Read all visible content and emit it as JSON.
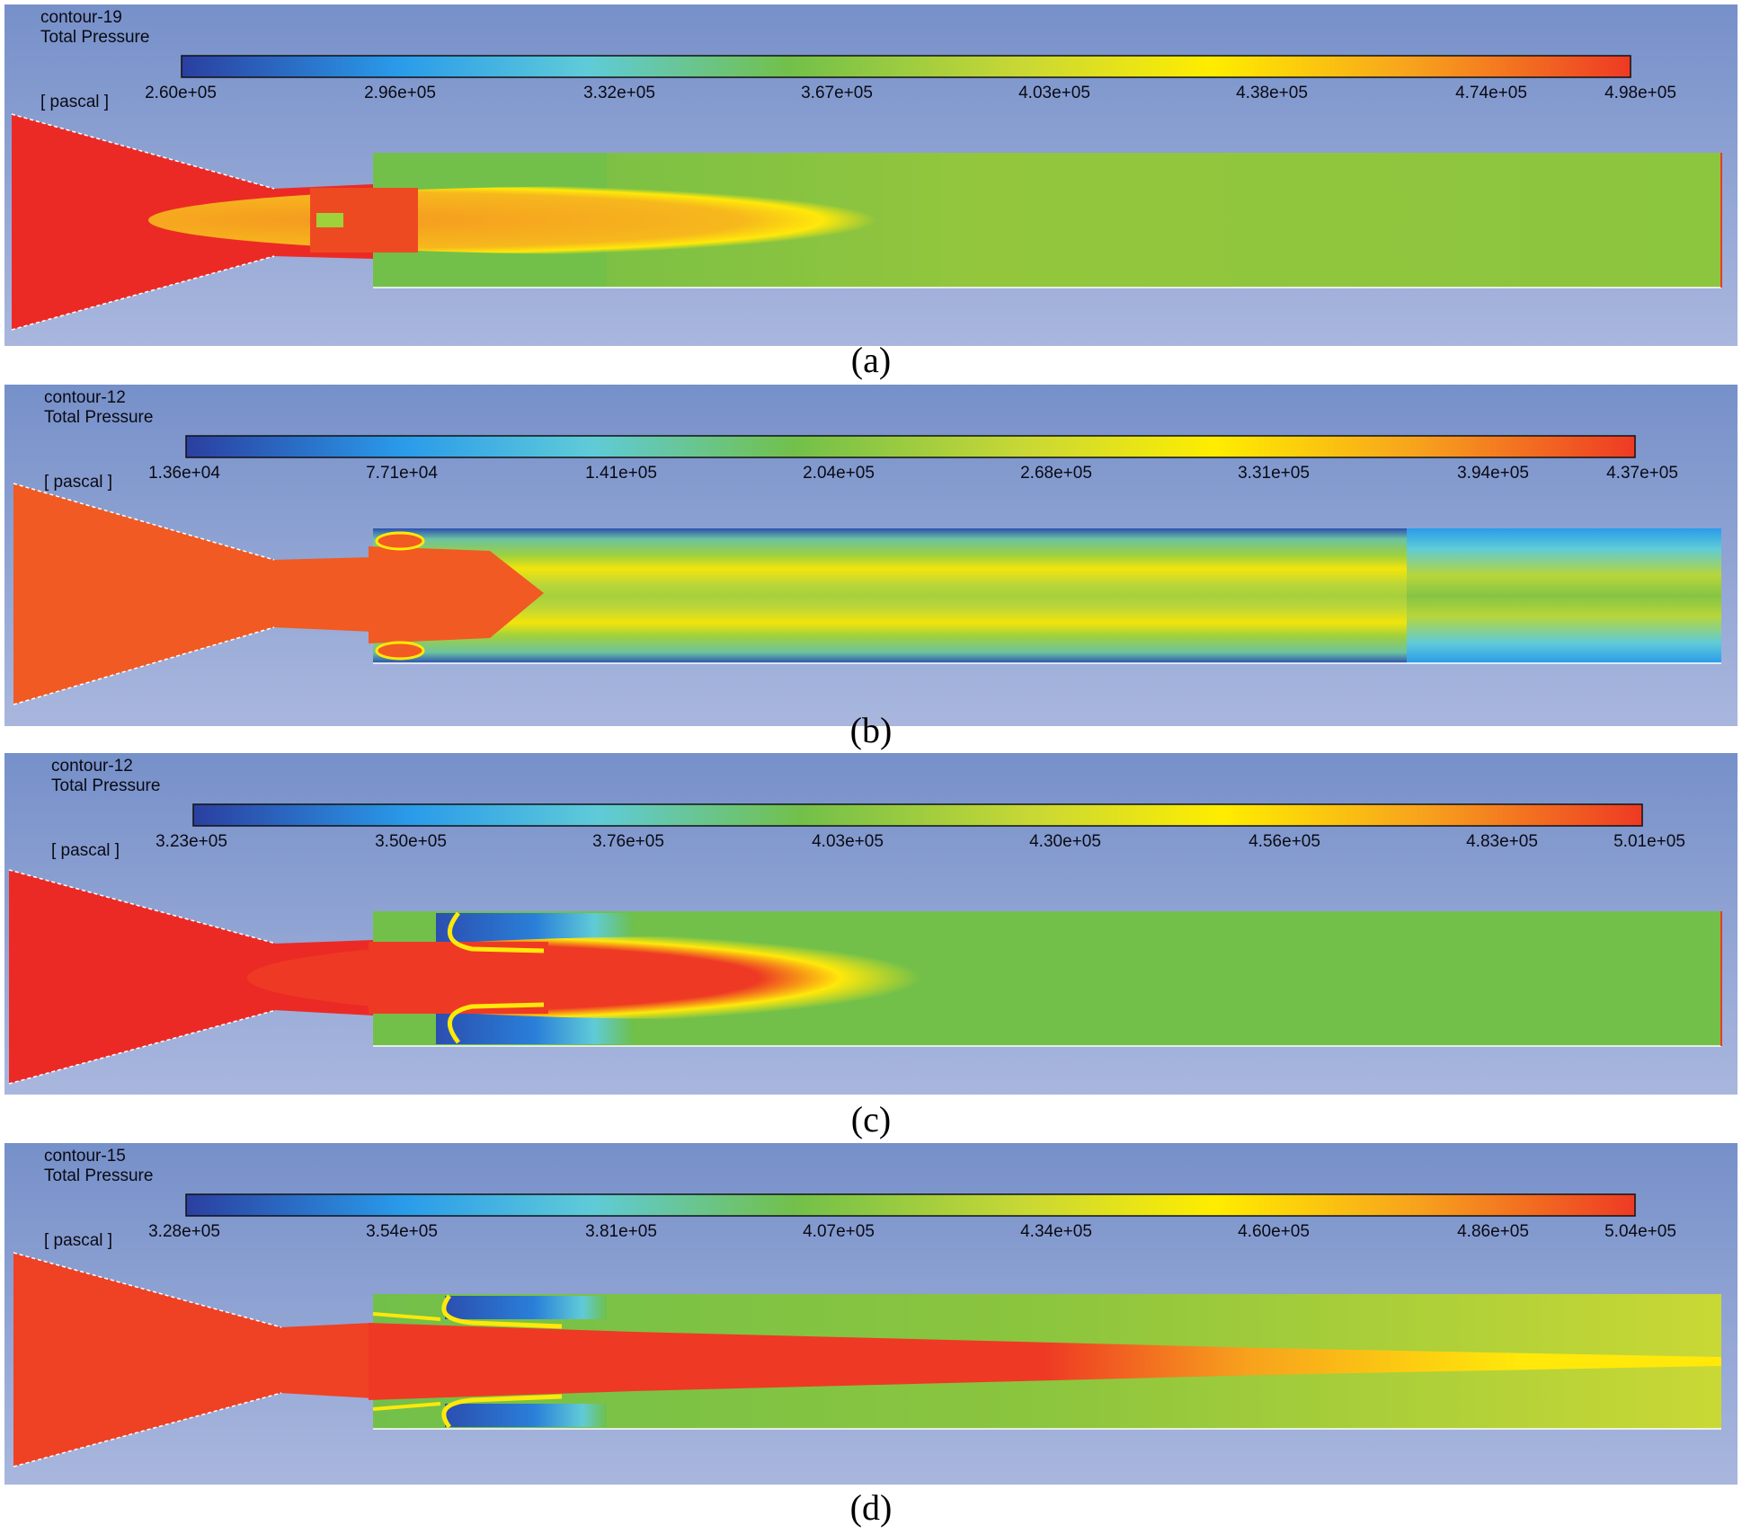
{
  "panels": [
    {
      "id": "a",
      "contour_name": "contour-19",
      "quantity": "Total Pressure",
      "unit": "[ pascal ]",
      "tick_labels": [
        "2.60e+05",
        "2.96e+05",
        "3.32e+05",
        "3.67e+05",
        "4.03e+05",
        "4.38e+05",
        "4.74e+05",
        "4.98e+05"
      ],
      "caption": "(a)",
      "flow_pattern": "single-jet"
    },
    {
      "id": "b",
      "contour_name": "contour-12",
      "quantity": "Total Pressure",
      "unit": "[ pascal ]",
      "tick_labels": [
        "1.36e+04",
        "7.71e+04",
        "1.41e+05",
        "2.04e+05",
        "2.68e+05",
        "3.31e+05",
        "3.94e+05",
        "4.37e+05"
      ],
      "caption": "(b)",
      "flow_pattern": "shock-train"
    },
    {
      "id": "c",
      "contour_name": "contour-12",
      "quantity": "Total Pressure",
      "unit": "[ pascal ]",
      "tick_labels": [
        "3.23e+05",
        "3.50e+05",
        "3.76e+05",
        "4.03e+05",
        "4.30e+05",
        "4.56e+05",
        "4.83e+05",
        "5.01e+05"
      ],
      "caption": "(c)",
      "flow_pattern": "recirculation-short"
    },
    {
      "id": "d",
      "contour_name": "contour-15",
      "quantity": "Total Pressure",
      "unit": "[ pascal ]",
      "tick_labels": [
        "3.28e+05",
        "3.54e+05",
        "3.81e+05",
        "4.07e+05",
        "4.34e+05",
        "4.60e+05",
        "4.86e+05",
        "5.04e+05"
      ],
      "caption": "(d)",
      "flow_pattern": "recirculation-long"
    }
  ],
  "colormap": [
    "#2b3fa0",
    "#2a9bea",
    "#5fcbd8",
    "#72c04a",
    "#c9d835",
    "#ffed00",
    "#f7a21d",
    "#ee3a24"
  ],
  "colors": {
    "background_top": "#7690c9",
    "background_bottom": "#a9b7de",
    "label_text": "#0a0a14"
  }
}
